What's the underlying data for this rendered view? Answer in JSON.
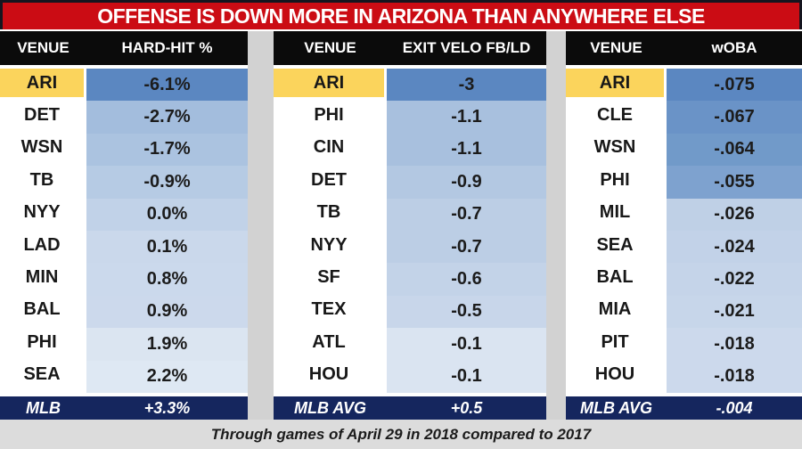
{
  "title": "OFFENSE IS DOWN MORE IN ARIZONA THAN ANYWHERE ELSE",
  "caption": "Through games of April 29 in 2018 compared to 2017",
  "colors": {
    "banner_red": "#cb0c14",
    "banner_border": "#15151f",
    "header_black": "#0b0b0b",
    "highlight_yellow": "#fbd45c",
    "footer_navy": "#15265e",
    "gap_gray": "#d2d2d2",
    "caption_gray": "#dcdcdc",
    "text_white": "#ffffff",
    "text_black": "#1c1c1c"
  },
  "chart_data": [
    {
      "type": "table",
      "columns": [
        "VENUE",
        "HARD-HIT %"
      ],
      "rows": [
        [
          "ARI",
          "-6.1%"
        ],
        [
          "DET",
          "-2.7%"
        ],
        [
          "WSN",
          "-1.7%"
        ],
        [
          "TB",
          "-0.9%"
        ],
        [
          "NYY",
          "0.0%"
        ],
        [
          "LAD",
          "0.1%"
        ],
        [
          "MIN",
          "0.8%"
        ],
        [
          "BAL",
          "0.9%"
        ],
        [
          "PHI",
          "1.9%"
        ],
        [
          "SEA",
          "2.2%"
        ]
      ],
      "value_colors": [
        "#5b87c1",
        "#a3bddd",
        "#abc3e0",
        "#b6cbe4",
        "#c1d2e8",
        "#cad8eb",
        "#cbd9ec",
        "#ccd9ec",
        "#dbe5f1",
        "#dee8f3"
      ],
      "footer": [
        "MLB",
        "+3.3%"
      ],
      "highlight_row": "ARI"
    },
    {
      "type": "table",
      "columns": [
        "VENUE",
        "EXIT VELO FB/LD"
      ],
      "rows": [
        [
          "ARI",
          "-3"
        ],
        [
          "PHI",
          "-1.1"
        ],
        [
          "CIN",
          "-1.1"
        ],
        [
          "DET",
          "-0.9"
        ],
        [
          "TB",
          "-0.7"
        ],
        [
          "NYY",
          "-0.7"
        ],
        [
          "SF",
          "-0.6"
        ],
        [
          "TEX",
          "-0.5"
        ],
        [
          "ATL",
          "-0.1"
        ],
        [
          "HOU",
          "-0.1"
        ]
      ],
      "value_colors": [
        "#5b87c1",
        "#a8c0de",
        "#a8c0de",
        "#b3c8e2",
        "#bccee5",
        "#bccee5",
        "#c3d3e8",
        "#c8d6ea",
        "#dae4f1",
        "#dae4f1"
      ],
      "footer": [
        "MLB AVG",
        "+0.5"
      ],
      "highlight_row": "ARI"
    },
    {
      "type": "table",
      "columns": [
        "VENUE",
        "wOBA"
      ],
      "rows": [
        [
          "ARI",
          "-.075"
        ],
        [
          "CLE",
          "-.067"
        ],
        [
          "WSN",
          "-.064"
        ],
        [
          "PHI",
          "-.055"
        ],
        [
          "MIL",
          "-.026"
        ],
        [
          "SEA",
          "-.024"
        ],
        [
          "BAL",
          "-.022"
        ],
        [
          "MIA",
          "-.021"
        ],
        [
          "PIT",
          "-.018"
        ],
        [
          "HOU",
          "-.018"
        ]
      ],
      "value_colors": [
        "#5b87c1",
        "#6a93c7",
        "#719ac9",
        "#7ea2cf",
        "#bfd0e6",
        "#c2d2e8",
        "#c5d4e9",
        "#c7d6ea",
        "#ccd9ec",
        "#ccd9ec"
      ],
      "footer": [
        "MLB AVG",
        "-.004"
      ],
      "highlight_row": "ARI"
    }
  ]
}
